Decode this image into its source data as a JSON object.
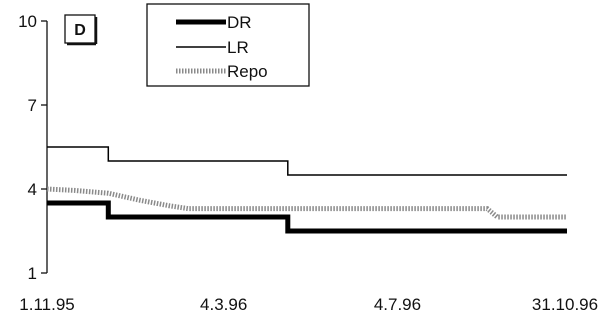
{
  "chart_data": {
    "type": "line",
    "panel_label": "D",
    "x_tick_labels": [
      "1.11.95",
      "4.3.96",
      "4.7.96",
      "31.10.96"
    ],
    "x_tick_dates": [
      "1995-11-01",
      "1996-03-04",
      "1996-07-04",
      "1996-10-31"
    ],
    "ylim": [
      1,
      10
    ],
    "y_ticks": [
      1,
      4,
      7,
      10
    ],
    "grid": false,
    "legend_position": "top",
    "series": [
      {
        "name": "DR",
        "style": "thick",
        "color": "#000000",
        "points": [
          [
            "1995-11-01",
            3.5
          ],
          [
            "1995-12-14",
            3.5
          ],
          [
            "1995-12-14",
            3.0
          ],
          [
            "1996-04-18",
            3.0
          ],
          [
            "1996-04-18",
            2.5
          ],
          [
            "1996-10-31",
            2.5
          ]
        ]
      },
      {
        "name": "LR",
        "style": "thin",
        "color": "#000000",
        "points": [
          [
            "1995-11-01",
            5.5
          ],
          [
            "1995-12-14",
            5.5
          ],
          [
            "1995-12-14",
            5.0
          ],
          [
            "1996-04-18",
            5.0
          ],
          [
            "1996-04-18",
            4.5
          ],
          [
            "1996-10-31",
            4.5
          ]
        ]
      },
      {
        "name": "Repo",
        "style": "dotted",
        "color": "#888888",
        "points": [
          [
            "1995-11-01",
            4.0
          ],
          [
            "1995-11-20",
            3.95
          ],
          [
            "1995-12-14",
            3.85
          ],
          [
            "1996-01-05",
            3.6
          ],
          [
            "1996-01-26",
            3.4
          ],
          [
            "1996-02-08",
            3.3
          ],
          [
            "1996-04-18",
            3.3
          ],
          [
            "1996-09-05",
            3.3
          ],
          [
            "1996-09-12",
            3.0
          ],
          [
            "1996-10-31",
            3.0
          ]
        ]
      }
    ]
  }
}
